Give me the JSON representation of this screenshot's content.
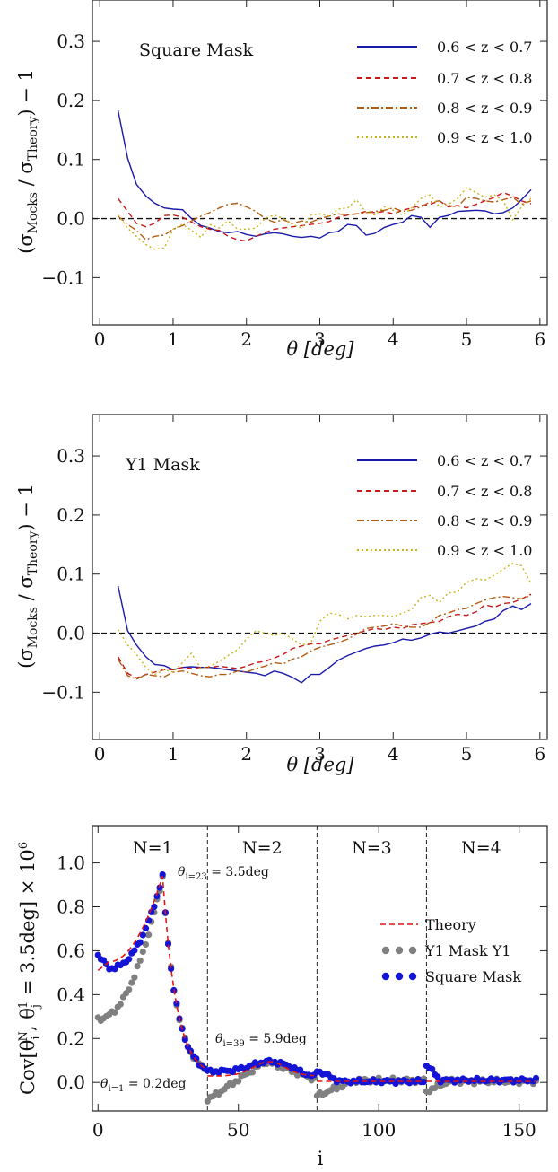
{
  "chart_data": [
    {
      "type": "line",
      "title": "Square Mask",
      "xlabel": "θ [deg]",
      "ylabel": "(σ_Mocks / σ_Theory) − 1",
      "xlim": [
        -0.1,
        6.1
      ],
      "ylim": [
        -0.18,
        0.37
      ],
      "xticks": [
        "0",
        "1",
        "2",
        "3",
        "4",
        "5",
        "6"
      ],
      "yticks": [
        "−0.1",
        "0.0",
        "0.1",
        "0.2",
        "0.3"
      ],
      "reference_line": 0.0,
      "legend_position": "top-right",
      "x": [
        0.25,
        0.38,
        0.5,
        0.63,
        0.75,
        0.88,
        1.0,
        1.13,
        1.25,
        1.38,
        1.5,
        1.63,
        1.75,
        1.88,
        2.0,
        2.13,
        2.25,
        2.38,
        2.5,
        2.63,
        2.75,
        2.88,
        3.0,
        3.13,
        3.25,
        3.38,
        3.5,
        3.63,
        3.75,
        3.88,
        4.0,
        4.13,
        4.25,
        4.38,
        4.5,
        4.63,
        4.75,
        4.88,
        5.0,
        5.13,
        5.25,
        5.38,
        5.5,
        5.63,
        5.75,
        5.88
      ],
      "series": [
        {
          "name": "0.6 < z < 0.7",
          "color": "#1a1aa8",
          "dash": "solid",
          "values": [
            0.183,
            0.102,
            0.058,
            0.038,
            0.026,
            0.018,
            0.016,
            0.015,
            0.0,
            -0.012,
            -0.016,
            -0.022,
            -0.024,
            -0.022,
            -0.027,
            -0.03,
            -0.026,
            -0.024,
            -0.026,
            -0.03,
            -0.032,
            -0.03,
            -0.033,
            -0.024,
            -0.022,
            -0.01,
            -0.012,
            -0.028,
            -0.025,
            -0.015,
            -0.01,
            -0.006,
            0.005,
            0.002,
            -0.015,
            0.002,
            0.005,
            0.012,
            0.013,
            0.014,
            0.013,
            0.008,
            0.01,
            0.018,
            0.032,
            0.049
          ]
        },
        {
          "name": "0.7 < z < 0.8",
          "color": "#c41a1a",
          "dash": "6,4",
          "values": [
            0.034,
            0.012,
            -0.008,
            -0.014,
            -0.008,
            0.005,
            0.006,
            0.002,
            -0.006,
            -0.014,
            -0.018,
            -0.02,
            -0.03,
            -0.036,
            -0.038,
            -0.03,
            -0.024,
            -0.018,
            -0.016,
            -0.014,
            -0.012,
            -0.01,
            -0.008,
            -0.005,
            0.002,
            0.006,
            0.008,
            0.012,
            0.01,
            0.012,
            0.008,
            0.014,
            0.018,
            0.022,
            0.024,
            0.03,
            0.02,
            0.022,
            0.018,
            0.024,
            0.03,
            0.036,
            0.044,
            0.038,
            0.03,
            0.025
          ]
        },
        {
          "name": "0.8 < z < 0.9",
          "color": "#b35d12",
          "dash": "8,3,2,3",
          "values": [
            0.004,
            -0.01,
            -0.02,
            -0.036,
            -0.03,
            -0.028,
            -0.018,
            -0.012,
            -0.004,
            0.004,
            0.01,
            0.018,
            0.024,
            0.026,
            0.02,
            0.012,
            0.0,
            -0.006,
            -0.002,
            -0.008,
            -0.004,
            -0.006,
            0.0,
            0.004,
            0.008,
            0.006,
            0.008,
            0.01,
            0.012,
            0.014,
            0.018,
            0.012,
            0.014,
            0.02,
            0.028,
            0.03,
            0.022,
            0.02,
            0.036,
            0.034,
            0.03,
            0.028,
            0.032,
            0.036,
            0.024,
            0.03
          ]
        },
        {
          "name": "0.9 < z < 1.0",
          "color": "#c8b41a",
          "dash": "2,3",
          "values": [
            0.006,
            -0.016,
            -0.03,
            -0.044,
            -0.052,
            -0.05,
            -0.018,
            -0.01,
            -0.02,
            -0.032,
            -0.01,
            -0.016,
            -0.004,
            -0.018,
            -0.018,
            -0.016,
            0.0,
            0.006,
            0.0,
            -0.01,
            -0.016,
            0.006,
            0.008,
            0.004,
            0.016,
            0.018,
            0.032,
            0.01,
            0.006,
            0.02,
            0.014,
            0.006,
            0.018,
            0.034,
            0.04,
            0.02,
            0.024,
            0.034,
            0.052,
            0.044,
            0.036,
            0.04,
            0.03,
            -0.002,
            0.02,
            0.034
          ]
        }
      ]
    },
    {
      "type": "line",
      "title": "Y1 Mask",
      "xlabel": "θ [deg]",
      "ylabel": "(σ_Mocks / σ_Theory) − 1",
      "xlim": [
        -0.1,
        6.1
      ],
      "ylim": [
        -0.18,
        0.37
      ],
      "xticks": [
        "0",
        "1",
        "2",
        "3",
        "4",
        "5",
        "6"
      ],
      "yticks": [
        "−0.1",
        "0.0",
        "0.1",
        "0.2",
        "0.3"
      ],
      "reference_line": 0.0,
      "legend_position": "top-right",
      "x": [
        0.25,
        0.38,
        0.5,
        0.63,
        0.75,
        0.88,
        1.0,
        1.13,
        1.25,
        1.38,
        1.5,
        1.63,
        1.75,
        1.88,
        2.0,
        2.13,
        2.25,
        2.38,
        2.5,
        2.63,
        2.75,
        2.88,
        3.0,
        3.13,
        3.25,
        3.38,
        3.5,
        3.63,
        3.75,
        3.88,
        4.0,
        4.13,
        4.25,
        4.38,
        4.5,
        4.63,
        4.75,
        4.88,
        5.0,
        5.13,
        5.25,
        5.38,
        5.5,
        5.63,
        5.75,
        5.88
      ],
      "series": [
        {
          "name": "0.6 < z < 0.7",
          "color": "#1a1aa8",
          "dash": "solid",
          "values": [
            0.08,
            0.004,
            -0.02,
            -0.04,
            -0.053,
            -0.055,
            -0.062,
            -0.058,
            -0.057,
            -0.058,
            -0.058,
            -0.06,
            -0.062,
            -0.064,
            -0.066,
            -0.068,
            -0.072,
            -0.064,
            -0.068,
            -0.075,
            -0.084,
            -0.07,
            -0.07,
            -0.058,
            -0.046,
            -0.038,
            -0.032,
            -0.026,
            -0.022,
            -0.02,
            -0.016,
            -0.01,
            -0.012,
            -0.008,
            -0.002,
            0.002,
            0.0,
            0.004,
            0.008,
            0.012,
            0.02,
            0.024,
            0.038,
            0.046,
            0.04,
            0.05
          ]
        },
        {
          "name": "0.7 < z < 0.8",
          "color": "#c41a1a",
          "dash": "6,4",
          "values": [
            -0.04,
            -0.068,
            -0.076,
            -0.07,
            -0.066,
            -0.062,
            -0.062,
            -0.058,
            -0.06,
            -0.058,
            -0.058,
            -0.056,
            -0.058,
            -0.06,
            -0.056,
            -0.05,
            -0.048,
            -0.042,
            -0.036,
            -0.026,
            -0.022,
            -0.018,
            -0.018,
            -0.012,
            -0.008,
            -0.004,
            0.0,
            0.004,
            0.008,
            0.006,
            0.01,
            0.008,
            0.014,
            0.016,
            0.018,
            0.02,
            0.028,
            0.032,
            0.03,
            0.036,
            0.048,
            0.044,
            0.05,
            0.052,
            0.058,
            0.066
          ]
        },
        {
          "name": "0.8 < z < 0.9",
          "color": "#b35d12",
          "dash": "8,3,2,3",
          "values": [
            -0.044,
            -0.072,
            -0.078,
            -0.07,
            -0.072,
            -0.074,
            -0.066,
            -0.064,
            -0.068,
            -0.072,
            -0.074,
            -0.07,
            -0.07,
            -0.064,
            -0.066,
            -0.06,
            -0.056,
            -0.05,
            -0.052,
            -0.044,
            -0.04,
            -0.03,
            -0.024,
            -0.02,
            -0.016,
            -0.01,
            -0.002,
            0.008,
            0.01,
            0.012,
            0.016,
            0.012,
            0.01,
            0.01,
            0.018,
            0.03,
            0.034,
            0.04,
            0.042,
            0.05,
            0.056,
            0.06,
            0.062,
            0.06,
            0.058,
            0.064
          ]
        },
        {
          "name": "0.9 < z < 1.0",
          "color": "#c8b41a",
          "dash": "2,3",
          "values": [
            0.006,
            -0.02,
            -0.036,
            -0.058,
            -0.07,
            -0.062,
            -0.066,
            -0.05,
            -0.034,
            -0.06,
            -0.056,
            -0.048,
            -0.038,
            -0.028,
            -0.01,
            0.004,
            0.0,
            -0.004,
            0.0,
            -0.01,
            -0.02,
            -0.016,
            0.02,
            0.034,
            0.032,
            0.024,
            0.03,
            0.028,
            0.03,
            0.03,
            0.028,
            0.034,
            0.04,
            0.06,
            0.064,
            0.052,
            0.068,
            0.07,
            0.086,
            0.092,
            0.09,
            0.098,
            0.108,
            0.118,
            0.114,
            0.084
          ]
        }
      ]
    },
    {
      "type": "scatter",
      "xlabel": "i",
      "ylabel": "Cov[θ_i^N, θ_j^1 = 3.5deg] × 10^6",
      "xlim": [
        -2,
        160
      ],
      "ylim": [
        -0.13,
        1.17
      ],
      "xticks": [
        "0",
        "50",
        "100",
        "150"
      ],
      "yticks": [
        "0.0",
        "0.2",
        "0.4",
        "0.6",
        "0.8",
        "1.0"
      ],
      "segment_labels": [
        "N=1",
        "N=2",
        "N=3",
        "N=4"
      ],
      "segment_boundaries": [
        39,
        78,
        117
      ],
      "annotations": [
        "θ_{i=23} = 3.5deg",
        "θ_{i=39} = 5.9deg",
        "θ_{i=1} = 0.2deg"
      ],
      "legend_position": "right",
      "series": [
        {
          "name": "Theory",
          "kind": "line",
          "color": "#e01515",
          "dash": "6,4"
        },
        {
          "name": "Y1 Mask Y1",
          "kind": "points",
          "color": "#808080"
        },
        {
          "name": "Square Mask",
          "kind": "points",
          "color": "#1414d6"
        }
      ]
    }
  ],
  "legend_labels": {
    "l1": "0.6 < z < 0.7",
    "l2": "0.7 < z < 0.8",
    "l3": "0.8 < z < 0.9",
    "l4": "0.9 < z < 1.0",
    "theory": "Theory",
    "y1": "Y1 Mask Y1",
    "square": "Square Mask"
  },
  "panel_titles": {
    "top": "Square Mask",
    "mid": "Y1 Mask"
  },
  "axis_labels": {
    "theta_deg": "θ [deg]",
    "sigma_ratio": "(σ",
    "sigma_mocks": "Mocks",
    "sigma_slash": " / σ",
    "sigma_theory": "Theory",
    "sigma_minus": ") − 1",
    "index_i": "i",
    "cov_label": "Cov[θ",
    "cov_i": "i",
    "cov_N": "N",
    "cov_comma": ", θ",
    "cov_j": "j",
    "cov_one": "1",
    "cov_rest": " = 3.5deg] × 10",
    "cov_six": "6"
  },
  "annotation_text": {
    "a1_theta": "θ",
    "a1_sub": "i=23",
    "a1_rest": " = 3.5deg",
    "a2_theta": "θ",
    "a2_sub": "i=39",
    "a2_rest": " = 5.9deg",
    "a3_theta": "θ",
    "a3_sub": "i=1",
    "a3_rest": " = 0.2deg"
  }
}
